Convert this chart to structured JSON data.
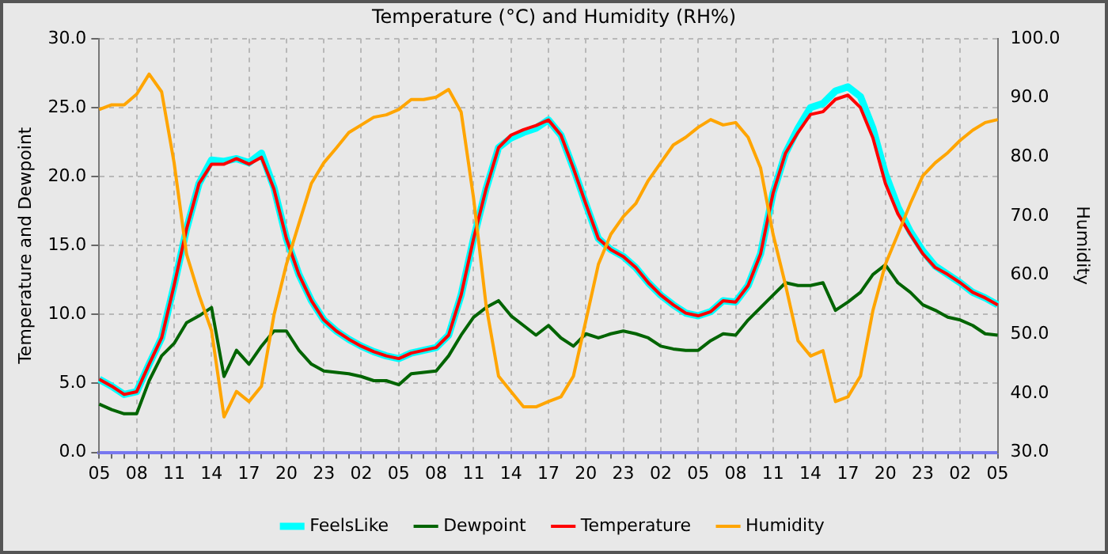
{
  "chart_data": {
    "type": "line",
    "title": "Temperature (°C) and Humidity (RH%)",
    "ylabel": "Temperature and Dewpoint",
    "y2label": "Humidity",
    "categories": [
      "05",
      null,
      null,
      "08",
      null,
      null,
      "11",
      null,
      null,
      "14",
      null,
      null,
      "17",
      null,
      null,
      "20",
      null,
      null,
      "23",
      null,
      null,
      "02",
      null,
      null,
      "05",
      null,
      null,
      "08",
      null,
      null,
      "11",
      null,
      null,
      "14",
      null,
      null,
      "17",
      null,
      null,
      "20",
      null,
      null,
      "23",
      null,
      null,
      "02",
      null,
      null,
      "05",
      null,
      null,
      "08",
      null,
      null,
      "11",
      null,
      null,
      "14",
      null,
      null,
      "17",
      null,
      null,
      "20",
      null,
      null,
      "23",
      null,
      null,
      "02",
      null,
      null,
      "05"
    ],
    "series": [
      {
        "name": "FeelsLike",
        "color": "#00ffff",
        "values": [
          5.3,
          4.8,
          4.2,
          4.4,
          6.4,
          8.3,
          12.1,
          16.2,
          19.5,
          21.2,
          21.1,
          21.3,
          21.0,
          21.7,
          19.2,
          15.5,
          12.9,
          11.0,
          9.6,
          8.8,
          8.2,
          7.7,
          7.3,
          7.0,
          6.8,
          7.2,
          7.4,
          7.6,
          8.5,
          11.4,
          15.5,
          19.1,
          22.1,
          22.8,
          23.2,
          23.5,
          24.1,
          23.0,
          20.6,
          18.0,
          15.5,
          14.7,
          14.2,
          13.4,
          12.3,
          11.4,
          10.7,
          10.1,
          9.9,
          10.2,
          11.0,
          10.9,
          12.1,
          14.4,
          18.8,
          21.7,
          23.5,
          25.0,
          25.3,
          26.2,
          26.5,
          25.8,
          23.5,
          20.2,
          17.8,
          16.0,
          14.6,
          13.5,
          12.9,
          12.3,
          11.6,
          11.2,
          10.7
        ]
      },
      {
        "name": "Dewpoint",
        "color": "#006400",
        "values": [
          3.5,
          3.1,
          2.8,
          2.8,
          5.2,
          7.0,
          7.9,
          9.4,
          9.9,
          10.5,
          5.5,
          7.4,
          6.4,
          7.7,
          8.8,
          8.8,
          7.4,
          6.4,
          5.9,
          5.8,
          5.7,
          5.5,
          5.2,
          5.2,
          4.9,
          5.7,
          5.8,
          5.9,
          7.0,
          8.5,
          9.8,
          10.5,
          11.0,
          9.9,
          9.2,
          8.5,
          9.2,
          8.3,
          7.7,
          8.6,
          8.3,
          8.6,
          8.8,
          8.6,
          8.3,
          7.7,
          7.5,
          7.4,
          7.4,
          8.1,
          8.6,
          8.5,
          9.6,
          10.5,
          11.4,
          12.3,
          12.1,
          12.1,
          12.3,
          10.3,
          10.9,
          11.6,
          12.9,
          13.6,
          12.3,
          11.6,
          10.7,
          10.3,
          9.8,
          9.6,
          9.2,
          8.6,
          8.5
        ]
      },
      {
        "name": "Temperature",
        "color": "#ff0000",
        "values": [
          5.3,
          4.8,
          4.2,
          4.4,
          6.4,
          8.3,
          12.1,
          16.2,
          19.5,
          20.9,
          20.9,
          21.3,
          20.9,
          21.4,
          19.1,
          15.5,
          12.9,
          11.0,
          9.6,
          8.8,
          8.2,
          7.7,
          7.3,
          7.0,
          6.8,
          7.2,
          7.4,
          7.6,
          8.5,
          11.4,
          15.5,
          19.1,
          22.1,
          23.0,
          23.4,
          23.7,
          24.1,
          23.0,
          20.6,
          18.0,
          15.5,
          14.7,
          14.2,
          13.4,
          12.3,
          11.4,
          10.7,
          10.1,
          9.9,
          10.2,
          11.0,
          10.9,
          12.1,
          14.4,
          18.8,
          21.7,
          23.2,
          24.5,
          24.7,
          25.6,
          25.9,
          25.0,
          22.8,
          19.5,
          17.3,
          15.8,
          14.4,
          13.4,
          12.9,
          12.3,
          11.6,
          11.2,
          10.7
        ]
      },
      {
        "name": "Humidity",
        "color": "#ffa500",
        "axis": "y2",
        "values": [
          88.0,
          88.8,
          88.8,
          90.6,
          94.0,
          91.0,
          79.0,
          63.5,
          56.6,
          50.6,
          36.0,
          40.3,
          38.6,
          41.2,
          53.2,
          61.8,
          68.7,
          75.5,
          79.0,
          81.5,
          84.1,
          85.4,
          86.7,
          87.1,
          88.0,
          89.7,
          89.7,
          90.1,
          91.4,
          87.6,
          73.0,
          54.9,
          42.9,
          40.3,
          37.7,
          37.7,
          38.6,
          39.4,
          42.9,
          52.3,
          61.8,
          66.9,
          69.9,
          72.1,
          76.0,
          79.0,
          82.0,
          83.3,
          85.0,
          86.3,
          85.4,
          85.8,
          83.3,
          78.1,
          66.9,
          58.3,
          48.9,
          46.3,
          47.2,
          38.6,
          39.4,
          42.9,
          54.0,
          61.8,
          66.9,
          72.1,
          76.8,
          79.0,
          80.7,
          82.8,
          84.5,
          85.8,
          86.3
        ]
      }
    ],
    "ylim": [
      0,
      30
    ],
    "yticks": [
      {
        "value": 0,
        "label": "0.0"
      },
      {
        "value": 5,
        "label": "5.0"
      },
      {
        "value": 10,
        "label": "10.0"
      },
      {
        "value": 15,
        "label": "15.0"
      },
      {
        "value": 20,
        "label": "20.0"
      },
      {
        "value": 25,
        "label": "25.0"
      },
      {
        "value": 30,
        "label": "30.0"
      }
    ],
    "y2lim": [
      30,
      100
    ],
    "y2ticks": [
      {
        "value": 30,
        "label": "30.0"
      },
      {
        "value": 40,
        "label": "40.0"
      },
      {
        "value": 50,
        "label": "50.0"
      },
      {
        "value": 60,
        "label": "60.0"
      },
      {
        "value": 70,
        "label": "70.0"
      },
      {
        "value": 80,
        "label": "80.0"
      },
      {
        "value": 90,
        "label": "90.0"
      },
      {
        "value": 100,
        "label": "100.0"
      }
    ],
    "grid": true,
    "legend": "bottom",
    "marker": "none",
    "line_style": "solid"
  }
}
